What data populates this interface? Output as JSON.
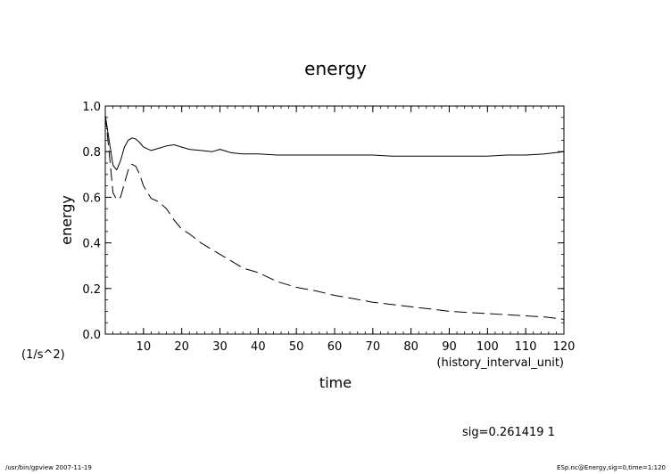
{
  "chart_data": {
    "type": "line",
    "title": "energy",
    "xlabel": "time",
    "xunit": "(history_interval_unit)",
    "ylabel": "energy",
    "yunit": "(1/s^2)",
    "xlim": [
      0,
      120
    ],
    "ylim": [
      0.0,
      1.0
    ],
    "grid": false,
    "x_ticks": [
      10,
      20,
      30,
      40,
      50,
      60,
      70,
      80,
      90,
      100,
      110,
      120
    ],
    "x_tick_labels": [
      "10",
      "20",
      "30",
      "40",
      "50",
      "60",
      "70",
      "80",
      "90",
      "100",
      "110",
      "120"
    ],
    "y_ticks": [
      0.0,
      0.2,
      0.4,
      0.6,
      0.8,
      1.0
    ],
    "y_tick_labels": [
      "0.0",
      "0.2",
      "0.4",
      "0.6",
      "0.8",
      "1.0"
    ],
    "series": [
      {
        "style": "solid",
        "x": [
          0,
          1,
          2,
          3,
          4,
          5,
          6,
          7,
          8,
          9,
          10,
          12,
          14,
          16,
          18,
          20,
          22,
          25,
          28,
          30,
          33,
          36,
          40,
          45,
          50,
          55,
          60,
          65,
          70,
          75,
          80,
          85,
          90,
          95,
          100,
          105,
          110,
          115,
          120
        ],
        "y": [
          0.96,
          0.85,
          0.74,
          0.72,
          0.76,
          0.82,
          0.85,
          0.86,
          0.855,
          0.84,
          0.82,
          0.805,
          0.815,
          0.825,
          0.83,
          0.82,
          0.81,
          0.805,
          0.8,
          0.81,
          0.795,
          0.79,
          0.79,
          0.785,
          0.785,
          0.785,
          0.785,
          0.785,
          0.785,
          0.78,
          0.78,
          0.78,
          0.78,
          0.78,
          0.78,
          0.785,
          0.785,
          0.79,
          0.8
        ]
      },
      {
        "style": "dashed",
        "x": [
          0,
          1,
          2,
          3,
          4,
          5,
          6,
          7,
          8,
          9,
          10,
          12,
          14,
          16,
          18,
          20,
          22,
          25,
          28,
          30,
          33,
          36,
          40,
          45,
          50,
          55,
          60,
          65,
          70,
          75,
          80,
          85,
          90,
          95,
          100,
          105,
          110,
          115,
          120
        ],
        "y": [
          0.96,
          0.8,
          0.62,
          0.59,
          0.6,
          0.66,
          0.72,
          0.745,
          0.735,
          0.7,
          0.65,
          0.595,
          0.58,
          0.55,
          0.5,
          0.46,
          0.44,
          0.4,
          0.37,
          0.35,
          0.32,
          0.29,
          0.27,
          0.23,
          0.205,
          0.19,
          0.17,
          0.155,
          0.14,
          0.13,
          0.12,
          0.11,
          0.1,
          0.095,
          0.09,
          0.085,
          0.08,
          0.075,
          0.065
        ]
      }
    ]
  },
  "annotation": "sig=0.261419 1",
  "footer": {
    "left": "/usr/bin/gpview  2007-11-19",
    "right": "ESp.nc@Energy,sig=0,time=1:120"
  }
}
